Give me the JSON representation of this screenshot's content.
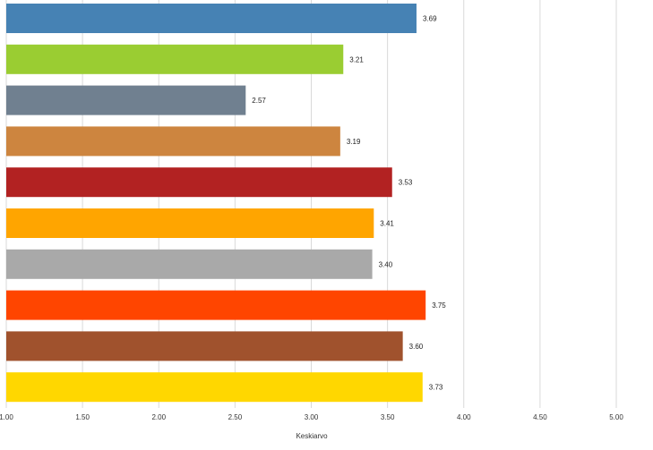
{
  "chart_data": {
    "type": "bar",
    "orientation": "horizontal",
    "title": "",
    "xlabel": "Keskiarvo",
    "ylabel": "",
    "xlim": [
      1.0,
      5.0
    ],
    "x_ticks": [
      "1.00",
      "1.50",
      "2.00",
      "2.50",
      "3.00",
      "3.50",
      "4.00",
      "4.50",
      "5.00"
    ],
    "grid": true,
    "legend": "none",
    "bars": [
      {
        "value": 3.69,
        "label": "3.69",
        "color": "#4682b4"
      },
      {
        "value": 3.21,
        "label": "3.21",
        "color": "#9acd32"
      },
      {
        "value": 2.57,
        "label": "2.57",
        "color": "#708090"
      },
      {
        "value": 3.19,
        "label": "3.19",
        "color": "#cd853f"
      },
      {
        "value": 3.53,
        "label": "3.53",
        "color": "#b22222"
      },
      {
        "value": 3.41,
        "label": "3.41",
        "color": "#ffa500"
      },
      {
        "value": 3.4,
        "label": "3.40",
        "color": "#a9a9a9"
      },
      {
        "value": 3.75,
        "label": "3.75",
        "color": "#ff4500"
      },
      {
        "value": 3.6,
        "label": "3.60",
        "color": "#a0522d"
      },
      {
        "value": 3.73,
        "label": "3.73",
        "color": "#ffd700"
      }
    ]
  }
}
